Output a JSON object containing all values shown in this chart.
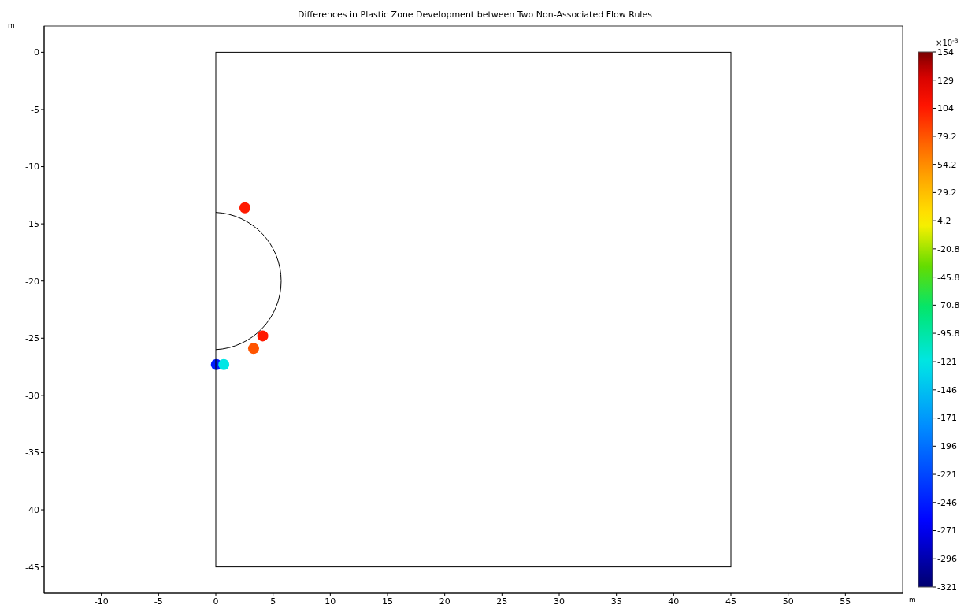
{
  "chart_data": {
    "type": "scatter",
    "title": "Differences in Plastic Zone Development between Two Non-Associated Flow Rules",
    "xlabel": "m",
    "ylabel": "m",
    "clabel": "×10$^{-3}$",
    "x": [
      2.54,
      4.1,
      3.3,
      0.05,
      0.7
    ],
    "values": [
      -13.6,
      -24.8,
      -25.9,
      -27.3,
      -27.3
    ],
    "cvalues": [
      104,
      104,
      79.2,
      -246,
      -121
    ],
    "xlim": [
      -15,
      60
    ],
    "xticks": [
      -10,
      -5,
      0,
      5,
      10,
      15,
      20,
      25,
      30,
      35,
      40,
      45,
      50,
      55
    ],
    "ylim": [
      -47.3,
      2.3
    ],
    "yticks": [
      0,
      -5,
      -10,
      -15,
      -20,
      -25,
      -30,
      -35,
      -40,
      -45
    ],
    "clim": [
      -321,
      154
    ],
    "cticks": [
      154,
      129,
      104,
      79.2,
      54.2,
      29.2,
      4.2,
      -20.8,
      -45.8,
      -70.8,
      -95.8,
      -121,
      -146,
      -171,
      -196,
      -221,
      -246,
      -271,
      -296,
      -321
    ],
    "grid": false,
    "marker": "circle"
  }
}
